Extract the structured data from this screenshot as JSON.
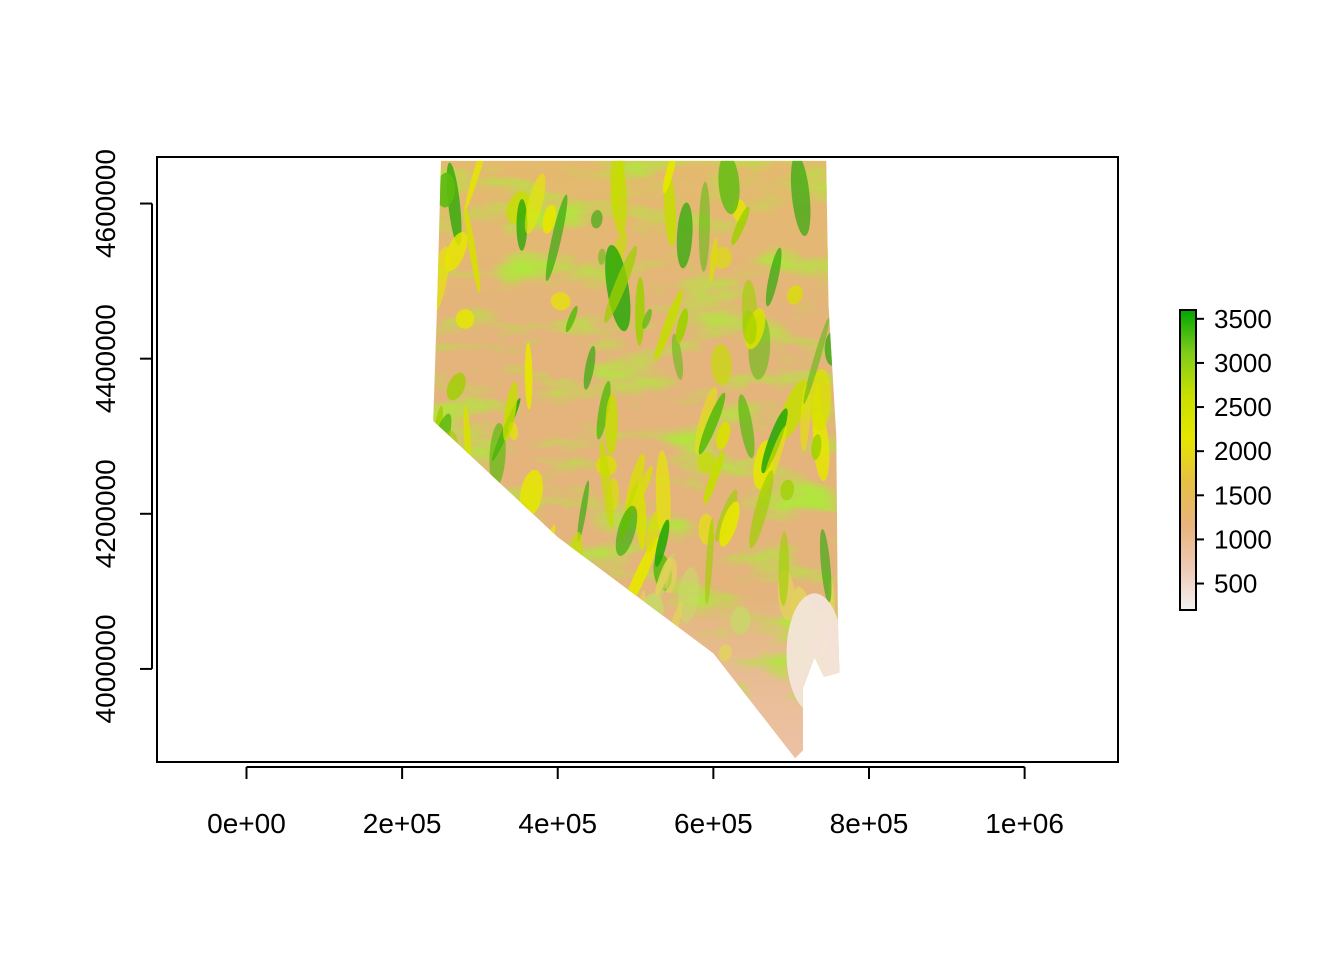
{
  "chart_data": {
    "type": "heatmap",
    "title": "",
    "xlabel": "",
    "ylabel": "",
    "xlim": [
      -115000,
      1120000
    ],
    "ylim": [
      3880000,
      4660000
    ],
    "x_ticks": [
      {
        "value": 0,
        "label": "0e+00"
      },
      {
        "value": 200000,
        "label": "2e+05"
      },
      {
        "value": 400000,
        "label": "4e+05"
      },
      {
        "value": 600000,
        "label": "6e+05"
      },
      {
        "value": 800000,
        "label": "8e+05"
      },
      {
        "value": 1000000,
        "label": "1e+06"
      }
    ],
    "y_ticks": [
      {
        "value": 4000000,
        "label": "4000000"
      },
      {
        "value": 4200000,
        "label": "4200000"
      },
      {
        "value": 4400000,
        "label": "4400000"
      },
      {
        "value": 4600000,
        "label": "4600000"
      }
    ],
    "region_outline": [
      [
        250000,
        4655000
      ],
      [
        745000,
        4655000
      ],
      [
        748000,
        4470000
      ],
      [
        758000,
        4300000
      ],
      [
        760000,
        4060000
      ],
      [
        762000,
        3995000
      ],
      [
        742000,
        3990000
      ],
      [
        730000,
        4015000
      ],
      [
        715000,
        3975000
      ],
      [
        715000,
        3895000
      ],
      [
        705000,
        3885000
      ],
      [
        600000,
        4020000
      ],
      [
        400000,
        4170000
      ],
      [
        240000,
        4320000
      ],
      [
        245000,
        4470000
      ]
    ],
    "legend": {
      "min": 200,
      "max": 3600,
      "ticks": [
        500,
        1000,
        1500,
        2000,
        2500,
        3000,
        3500
      ],
      "tick_labels": [
        "500",
        "1000",
        "1500",
        "2000",
        "2500",
        "3000",
        "3500"
      ],
      "placement": "right",
      "colors": [
        "#f2f2f2",
        "#eec9b3",
        "#e8b47c",
        "#e6c043",
        "#e6e600",
        "#c9e000",
        "#7fcc1a",
        "#00a600"
      ]
    }
  }
}
